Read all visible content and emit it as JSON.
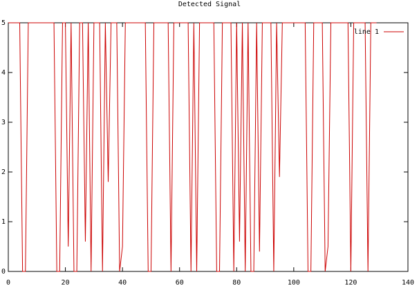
{
  "chart_data": {
    "type": "line",
    "title": "Detected Signal",
    "x": [
      0,
      4,
      5,
      6,
      7,
      16,
      17,
      18,
      19,
      20,
      21,
      22,
      23,
      24,
      25,
      26,
      27,
      28,
      29,
      30,
      32,
      33,
      34,
      35,
      36,
      38,
      39,
      40,
      41,
      48,
      49,
      50,
      51,
      56,
      57,
      58,
      63,
      64,
      65,
      66,
      67,
      72,
      73,
      74,
      75,
      78,
      79,
      80,
      81,
      82,
      83,
      84,
      85,
      86,
      87,
      88,
      89,
      92,
      93,
      94,
      95,
      96,
      104,
      105,
      106,
      107,
      110,
      111,
      112,
      113,
      119,
      120,
      121,
      125,
      126,
      127,
      129
    ],
    "series": [
      {
        "name": "line 1",
        "color": "#cc0000",
        "values": [
          5,
          5,
          0,
          0,
          5,
          5,
          0,
          0,
          5,
          5,
          0.5,
          5,
          0,
          0,
          5,
          5,
          0.6,
          5,
          0,
          5,
          5,
          0,
          5,
          1.8,
          5,
          5,
          0,
          0.5,
          5,
          5,
          0,
          0,
          5,
          5,
          0,
          5,
          5,
          0,
          5,
          0,
          5,
          5,
          0,
          0,
          5,
          5,
          0,
          5,
          0.6,
          5,
          0,
          5,
          0,
          0,
          5,
          0.4,
          5,
          5,
          0,
          5,
          1.9,
          5,
          5,
          0,
          0,
          5,
          5,
          0,
          0.5,
          5,
          5,
          0,
          5,
          5,
          0,
          5,
          5
        ]
      }
    ],
    "xlim": [
      0,
      140
    ],
    "xticks": [
      0,
      20,
      40,
      60,
      80,
      100,
      120,
      140
    ],
    "ylim": [
      0,
      5
    ],
    "yticks": [
      0,
      1,
      2,
      3,
      4,
      5
    ],
    "legend": "upper right"
  }
}
